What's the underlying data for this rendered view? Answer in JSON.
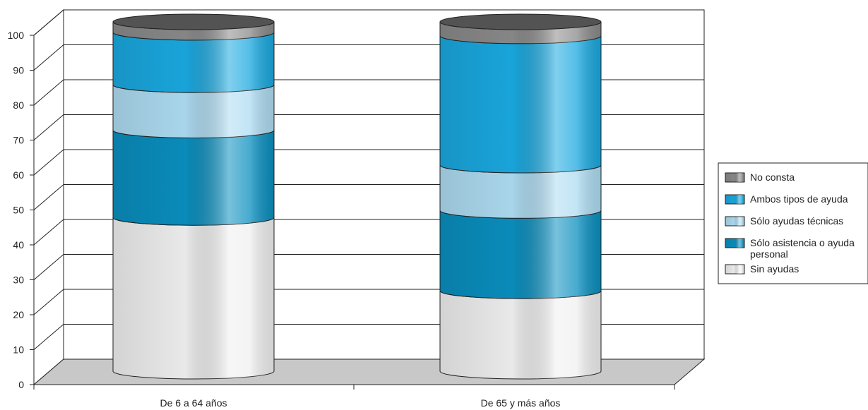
{
  "chart_data": {
    "type": "bar",
    "subtype": "stacked-cylinder-3d",
    "categories": [
      "De 6 a 64 años",
      "De 65 y más años"
    ],
    "series": [
      {
        "name": "Sin ayudas",
        "values": [
          44,
          23
        ],
        "color": "#f0f0f0"
      },
      {
        "name": "Sólo asistencia o ayuda personal",
        "values": [
          25,
          23
        ],
        "color": "#0a8fbf"
      },
      {
        "name": "Sólo ayudas técnicas",
        "values": [
          13,
          13
        ],
        "color": "#aedcf2"
      },
      {
        "name": "Ambos tipos de ayuda",
        "values": [
          15,
          37
        ],
        "color": "#1aa9e0"
      },
      {
        "name": "No consta",
        "values": [
          3,
          4
        ],
        "color": "#8a8a8a"
      }
    ],
    "legend": {
      "position": "right",
      "order": [
        "No consta",
        "Ambos tipos de ayuda",
        "Sólo ayudas técnicas",
        "Sólo asistencia o ayuda personal",
        "Sin ayudas"
      ]
    },
    "yticks": [
      "0",
      "10",
      "20",
      "30",
      "40",
      "50",
      "60",
      "70",
      "80",
      "90",
      "100"
    ],
    "ylim": [
      0,
      100
    ],
    "grid": true,
    "title": "",
    "xlabel": "",
    "ylabel": ""
  }
}
